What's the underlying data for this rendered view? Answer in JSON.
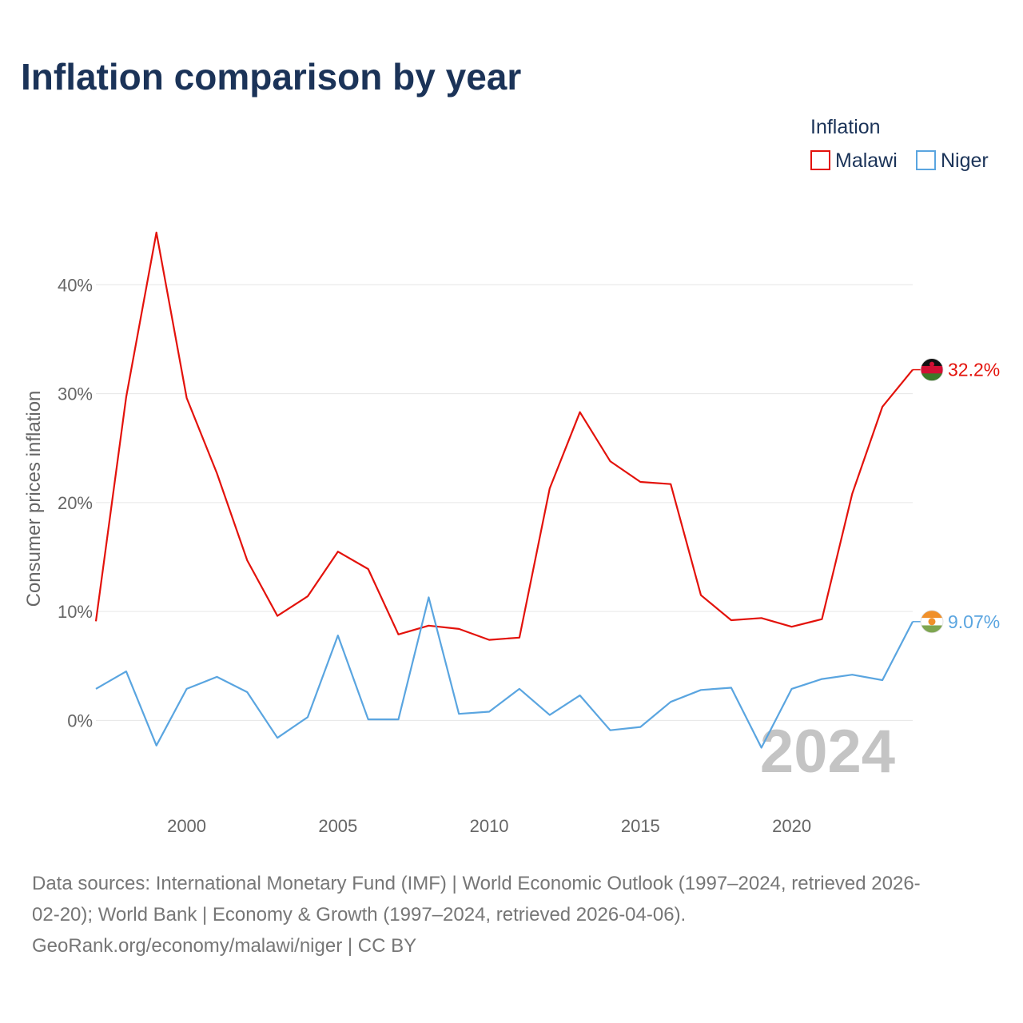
{
  "chart_data": {
    "type": "line",
    "title": "Inflation comparison by year",
    "legend_title": "Inflation",
    "legend_position": "top-right",
    "ylabel": "Consumer prices inflation",
    "xlabel": "",
    "xlim": [
      1997,
      2024
    ],
    "ylim": [
      -6.5,
      50
    ],
    "x_ticks": [
      2000,
      2005,
      2010,
      2015,
      2020
    ],
    "y_ticks": [
      0,
      10,
      20,
      30,
      40
    ],
    "y_tick_labels": [
      "0%",
      "10%",
      "20%",
      "30%",
      "40%"
    ],
    "watermark_year": "2024",
    "x": [
      1997,
      1998,
      1999,
      2000,
      2001,
      2002,
      2003,
      2004,
      2005,
      2006,
      2007,
      2008,
      2009,
      2010,
      2011,
      2012,
      2013,
      2014,
      2015,
      2016,
      2017,
      2018,
      2019,
      2020,
      2021,
      2022,
      2023,
      2024
    ],
    "series": [
      {
        "name": "Malawi",
        "color": "#e3120b",
        "end_label": "32.2%",
        "values": [
          9.1,
          29.7,
          44.8,
          29.6,
          22.7,
          14.7,
          9.6,
          11.4,
          15.5,
          13.9,
          7.9,
          8.7,
          8.4,
          7.4,
          7.6,
          21.3,
          28.3,
          23.8,
          21.9,
          21.7,
          11.5,
          9.2,
          9.4,
          8.6,
          9.3,
          20.8,
          28.8,
          32.2
        ]
      },
      {
        "name": "Niger",
        "color": "#5aa5e0",
        "end_label": "9.07%",
        "values": [
          2.9,
          4.5,
          -2.3,
          2.9,
          4.0,
          2.6,
          -1.6,
          0.3,
          7.8,
          0.1,
          0.1,
          11.3,
          0.6,
          0.8,
          2.9,
          0.5,
          2.3,
          -0.9,
          -0.6,
          1.7,
          2.8,
          3.0,
          -2.5,
          2.9,
          3.8,
          4.2,
          3.7,
          9.07
        ]
      }
    ]
  },
  "footer": {
    "source_line1": "Data sources: International Monetary Fund (IMF) | World Economic Outlook (1997–2024, retrieved 2026-",
    "source_line2": "02-20); World Bank | Economy & Growth (1997–2024, retrieved 2026-04-06).",
    "source_line3": "GeoRank.org/economy/malawi/niger | CC BY"
  },
  "flags": {
    "malawi": {
      "icon": "malawi-flag-icon",
      "colors": [
        "#111111",
        "#d21034",
        "#3b7a2a"
      ]
    },
    "niger": {
      "icon": "niger-flag-icon",
      "colors": [
        "#f0902a",
        "#ffffff",
        "#7ea650"
      ]
    }
  }
}
